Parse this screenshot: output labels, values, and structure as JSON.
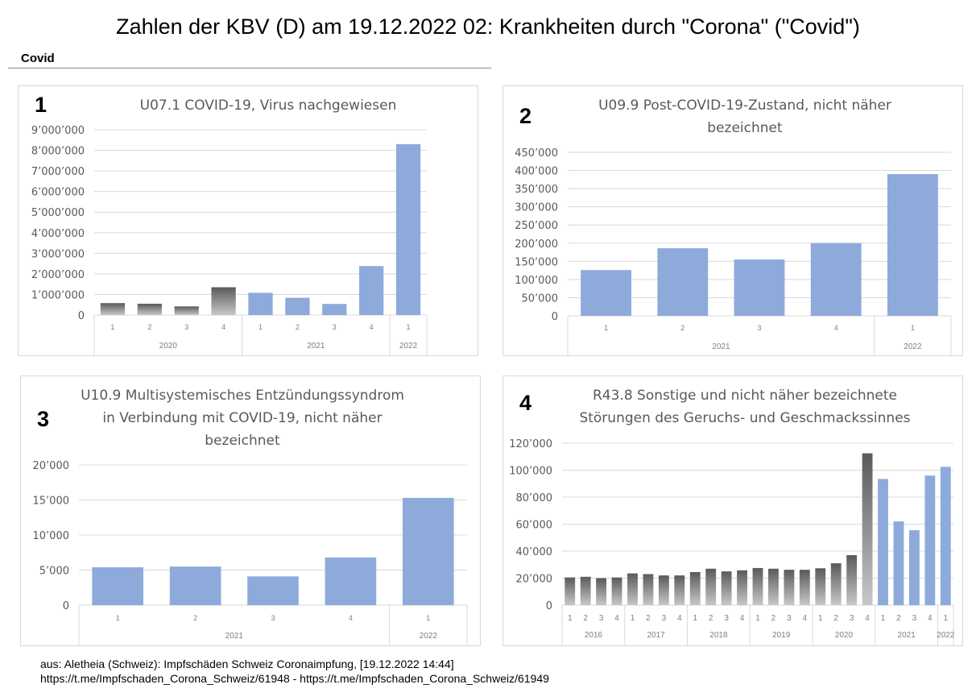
{
  "title": "Zahlen der KBV (D) am 19.12.2022 02: Krankheiten durch \"Corona\" (\"Covid\")",
  "section_label": "Covid",
  "footer": {
    "line1": "aus: Aletheia (Schweiz): Impfschäden Schweiz Coronaimpfung, [19.12.2022 14:44]",
    "line2": "https://t.me/Impfschaden_Corona_Schweiz/61948 - https://t.me/Impfschaden_Corona_Schweiz/61949"
  },
  "colors": {
    "blue": "#8eaadb",
    "gray_dark": "#5a5a5a",
    "gray_light": "#c8c8c8",
    "grid": "#d9d9d9",
    "tick": "#595959"
  },
  "chart_data": [
    {
      "number": "1",
      "type": "bar",
      "title": [
        "U07.1 COVID-19, Virus nachgewiesen"
      ],
      "ylim": [
        0,
        9000000
      ],
      "ytick_step": 1000000,
      "yticks": [
        "0",
        "1’000’000",
        "2’000’000",
        "3’000’000",
        "4’000’000",
        "5’000’000",
        "6’000’000",
        "7’000’000",
        "8’000’000",
        "9’000’000"
      ],
      "grid": true,
      "groups": [
        {
          "year": "2020",
          "style": "gray",
          "quarters": [
            "1",
            "2",
            "3",
            "4"
          ],
          "values": [
            580000,
            550000,
            420000,
            1350000
          ]
        },
        {
          "year": "2021",
          "style": "blue",
          "quarters": [
            "1",
            "2",
            "3",
            "4"
          ],
          "values": [
            1080000,
            840000,
            540000,
            2380000
          ]
        },
        {
          "year": "2022",
          "style": "blue",
          "quarters": [
            "1"
          ],
          "values": [
            8300000
          ]
        }
      ]
    },
    {
      "number": "2",
      "type": "bar",
      "title": [
        "U09.9 Post-COVID-19-Zustand, nicht näher",
        "bezeichnet"
      ],
      "ylim": [
        0,
        450000
      ],
      "ytick_step": 50000,
      "yticks": [
        "0",
        "50’000",
        "100’000",
        "150’000",
        "200’000",
        "250’000",
        "300’000",
        "350’000",
        "400’000",
        "450’000"
      ],
      "grid": true,
      "groups": [
        {
          "year": "2021",
          "style": "blue",
          "quarters": [
            "1",
            "2",
            "3",
            "4"
          ],
          "values": [
            126000,
            186000,
            155000,
            200000
          ]
        },
        {
          "year": "2022",
          "style": "blue",
          "quarters": [
            "1"
          ],
          "values": [
            390000
          ]
        }
      ]
    },
    {
      "number": "3",
      "type": "bar",
      "title": [
        "U10.9 Multisystemisches Entzündungssyndrom",
        "in Verbindung mit COVID-19, nicht näher",
        "bezeichnet"
      ],
      "ylim": [
        0,
        20000
      ],
      "ytick_step": 5000,
      "yticks": [
        "0",
        "5’000",
        "10’000",
        "15’000",
        "20’000"
      ],
      "grid": true,
      "groups": [
        {
          "year": "2021",
          "style": "blue",
          "quarters": [
            "1",
            "2",
            "3",
            "4"
          ],
          "values": [
            5400,
            5500,
            4100,
            6800
          ]
        },
        {
          "year": "2022",
          "style": "blue",
          "quarters": [
            "1"
          ],
          "values": [
            15300
          ]
        }
      ]
    },
    {
      "number": "4",
      "type": "bar",
      "title": [
        "R43.8 Sonstige und nicht näher bezeichnete",
        "Störungen des Geruchs- und Geschmackssinnes"
      ],
      "ylim": [
        0,
        120000
      ],
      "ytick_step": 20000,
      "yticks": [
        "0",
        "20’000",
        "40’000",
        "60’000",
        "80’000",
        "100’000",
        "120’000"
      ],
      "grid": true,
      "groups": [
        {
          "year": "2016",
          "style": "gray",
          "quarters": [
            "1",
            "2",
            "3",
            "4"
          ],
          "values": [
            20500,
            21000,
            20000,
            20500
          ]
        },
        {
          "year": "2017",
          "style": "gray",
          "quarters": [
            "1",
            "2",
            "3",
            "4"
          ],
          "values": [
            23500,
            23000,
            22000,
            22000
          ]
        },
        {
          "year": "2018",
          "style": "gray",
          "quarters": [
            "1",
            "2",
            "3",
            "4"
          ],
          "values": [
            24500,
            27000,
            25000,
            25800
          ]
        },
        {
          "year": "2019",
          "style": "gray",
          "quarters": [
            "1",
            "2",
            "3",
            "4"
          ],
          "values": [
            27500,
            27000,
            26200,
            26200
          ]
        },
        {
          "year": "2020",
          "style": "gray",
          "quarters": [
            "1",
            "2",
            "3",
            "4"
          ],
          "values": [
            27300,
            31000,
            37000,
            112500
          ]
        },
        {
          "year": "2021",
          "style": "blue",
          "quarters": [
            "1",
            "2",
            "3",
            "4"
          ],
          "values": [
            93500,
            62000,
            55500,
            96000
          ]
        },
        {
          "year": "2022",
          "style": "blue",
          "quarters": [
            "1"
          ],
          "values": [
            102500
          ]
        }
      ]
    }
  ]
}
